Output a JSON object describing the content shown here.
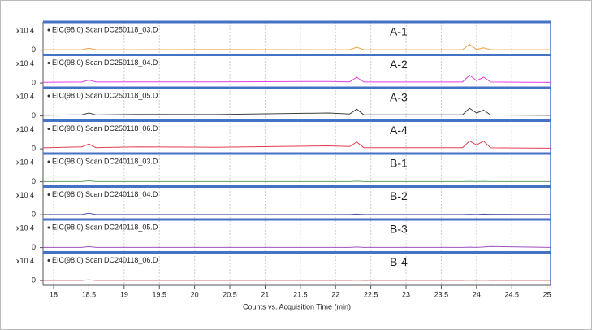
{
  "chart_data": [
    {
      "type": "line",
      "title": "EIC(98.0) Scan DC250118_03.D",
      "annotation": "A-1",
      "y_scale_label": "x10 4",
      "x": [
        17.85,
        18.4,
        18.5,
        18.6,
        19.2,
        20.3,
        21.9,
        22.2,
        22.3,
        22.4,
        23.8,
        23.9,
        24.0,
        24.1,
        24.2,
        25.05
      ],
      "series": [
        {
          "color": "#f0a040",
          "values": [
            0.02,
            0.02,
            0.1,
            0.02,
            0.02,
            0.03,
            0.02,
            0.02,
            0.15,
            0.02,
            0.02,
            0.3,
            0.03,
            0.12,
            0.02,
            0.02
          ]
        }
      ],
      "xlim": [
        17.85,
        25.05
      ],
      "ylim": [
        -0.1,
        1.2
      ],
      "yticks": [
        0
      ]
    },
    {
      "type": "line",
      "title": "EIC(98.0) Scan DC250118_04.D",
      "annotation": "A-2",
      "y_scale_label": "x10 4",
      "x": [
        17.85,
        18.4,
        18.5,
        18.6,
        19.2,
        20.3,
        21.9,
        22.2,
        22.3,
        22.4,
        23.8,
        23.9,
        24.0,
        24.1,
        24.2,
        25.05
      ],
      "series": [
        {
          "color": "#e040e0",
          "values": [
            0.04,
            0.05,
            0.15,
            0.05,
            0.06,
            0.06,
            0.08,
            0.06,
            0.3,
            0.05,
            0.05,
            0.4,
            0.12,
            0.3,
            0.05,
            0.03
          ]
        }
      ],
      "xlim": [
        17.85,
        25.05
      ],
      "ylim": [
        -0.1,
        1.2
      ],
      "yticks": [
        0
      ]
    },
    {
      "type": "line",
      "title": "EIC(98.0) Scan DC250118_05.D",
      "annotation": "A-3",
      "y_scale_label": "x10 4",
      "x": [
        17.85,
        18.4,
        18.5,
        18.6,
        19.2,
        20.3,
        21.9,
        22.2,
        22.3,
        22.4,
        23.8,
        23.9,
        24.0,
        24.1,
        24.2,
        25.05
      ],
      "series": [
        {
          "color": "#404040",
          "values": [
            0.04,
            0.06,
            0.15,
            0.05,
            0.08,
            0.07,
            0.15,
            0.1,
            0.35,
            0.06,
            0.06,
            0.4,
            0.15,
            0.3,
            0.05,
            0.03
          ]
        }
      ],
      "xlim": [
        17.85,
        25.05
      ],
      "ylim": [
        -0.1,
        1.2
      ],
      "yticks": [
        0
      ]
    },
    {
      "type": "line",
      "title": "EIC(98.0) Scan DC250118_06.D",
      "annotation": "A-4",
      "y_scale_label": "x10 4",
      "x": [
        17.85,
        18.4,
        18.5,
        18.6,
        19.2,
        20.3,
        21.9,
        22.2,
        22.3,
        22.4,
        23.8,
        23.9,
        24.0,
        24.1,
        24.2,
        25.05
      ],
      "series": [
        {
          "color": "#e04050",
          "values": [
            0.05,
            0.1,
            0.25,
            0.06,
            0.1,
            0.08,
            0.15,
            0.12,
            0.35,
            0.06,
            0.06,
            0.4,
            0.2,
            0.4,
            0.05,
            0.03
          ]
        }
      ],
      "xlim": [
        17.85,
        25.05
      ],
      "ylim": [
        -0.1,
        1.2
      ],
      "yticks": [
        0
      ]
    },
    {
      "type": "line",
      "title": "EIC(98.0) Scan DC240118_03.D",
      "annotation": "B-1",
      "y_scale_label": "x10 4",
      "x": [
        17.85,
        18.4,
        18.5,
        18.6,
        19.2,
        20.3,
        21.9,
        22.2,
        22.3,
        22.4,
        23.8,
        23.9,
        24.0,
        24.1,
        24.2,
        25.05
      ],
      "series": [
        {
          "color": "#60a060",
          "values": [
            0.01,
            0.01,
            0.05,
            0.01,
            0.01,
            0.01,
            0.01,
            0.01,
            0.03,
            0.01,
            0.01,
            0.02,
            0.01,
            0.02,
            0.01,
            0.01
          ]
        }
      ],
      "xlim": [
        17.85,
        25.05
      ],
      "ylim": [
        -0.1,
        1.2
      ],
      "yticks": [
        0
      ]
    },
    {
      "type": "line",
      "title": "EIC(98.0) Scan DC240118_04.D",
      "annotation": "B-2",
      "y_scale_label": "x10 4",
      "x": [
        17.85,
        18.4,
        18.5,
        18.6,
        19.2,
        20.3,
        21.9,
        22.2,
        22.3,
        22.4,
        23.8,
        23.9,
        24.0,
        24.1,
        24.2,
        25.05
      ],
      "series": [
        {
          "color": "#5050a0",
          "values": [
            0.01,
            0.01,
            0.08,
            0.01,
            0.01,
            0.01,
            0.01,
            0.01,
            0.03,
            0.01,
            0.01,
            0.02,
            0.01,
            0.03,
            0.02,
            0.01
          ]
        }
      ],
      "xlim": [
        17.85,
        25.05
      ],
      "ylim": [
        -0.1,
        1.2
      ],
      "yticks": [
        0
      ]
    },
    {
      "type": "line",
      "title": "EIC(98.0) Scan DC240118_05.D",
      "annotation": "B-3",
      "y_scale_label": "x10 4",
      "x": [
        17.85,
        18.4,
        18.5,
        18.6,
        19.2,
        20.3,
        21.9,
        22.2,
        22.3,
        22.4,
        23.8,
        23.9,
        24.0,
        24.1,
        24.2,
        25.05
      ],
      "series": [
        {
          "color": "#a050c0",
          "values": [
            0.01,
            0.01,
            0.05,
            0.01,
            0.01,
            0.01,
            0.01,
            0.01,
            0.03,
            0.01,
            0.01,
            0.02,
            0.01,
            0.03,
            0.06,
            0.01
          ]
        }
      ],
      "xlim": [
        17.85,
        25.05
      ],
      "ylim": [
        -0.1,
        1.2
      ],
      "yticks": [
        0
      ]
    },
    {
      "type": "line",
      "title": "EIC(98.0) Scan DC240118_06.D",
      "annotation": "B-4",
      "y_scale_label": "x10 4",
      "x": [
        17.85,
        18.4,
        18.5,
        18.6,
        19.2,
        20.3,
        21.9,
        22.2,
        22.3,
        22.4,
        23.8,
        23.9,
        24.0,
        24.1,
        24.2,
        25.05
      ],
      "series": [
        {
          "color": "#c04040",
          "values": [
            0.01,
            0.01,
            0.04,
            0.01,
            0.01,
            0.01,
            0.01,
            0.01,
            0.02,
            0.01,
            0.01,
            0.02,
            0.01,
            0.02,
            0.01,
            0.01
          ]
        }
      ],
      "xlim": [
        17.85,
        25.05
      ],
      "ylim": [
        -0.1,
        1.2
      ],
      "yticks": [
        0
      ],
      "xticks": [
        18,
        18.5,
        19,
        19.5,
        20,
        20.5,
        21,
        21.5,
        22,
        22.5,
        23,
        23.5,
        24,
        24.5,
        25
      ],
      "xlabel": "Counts vs. Acquisition Time (min)"
    }
  ]
}
